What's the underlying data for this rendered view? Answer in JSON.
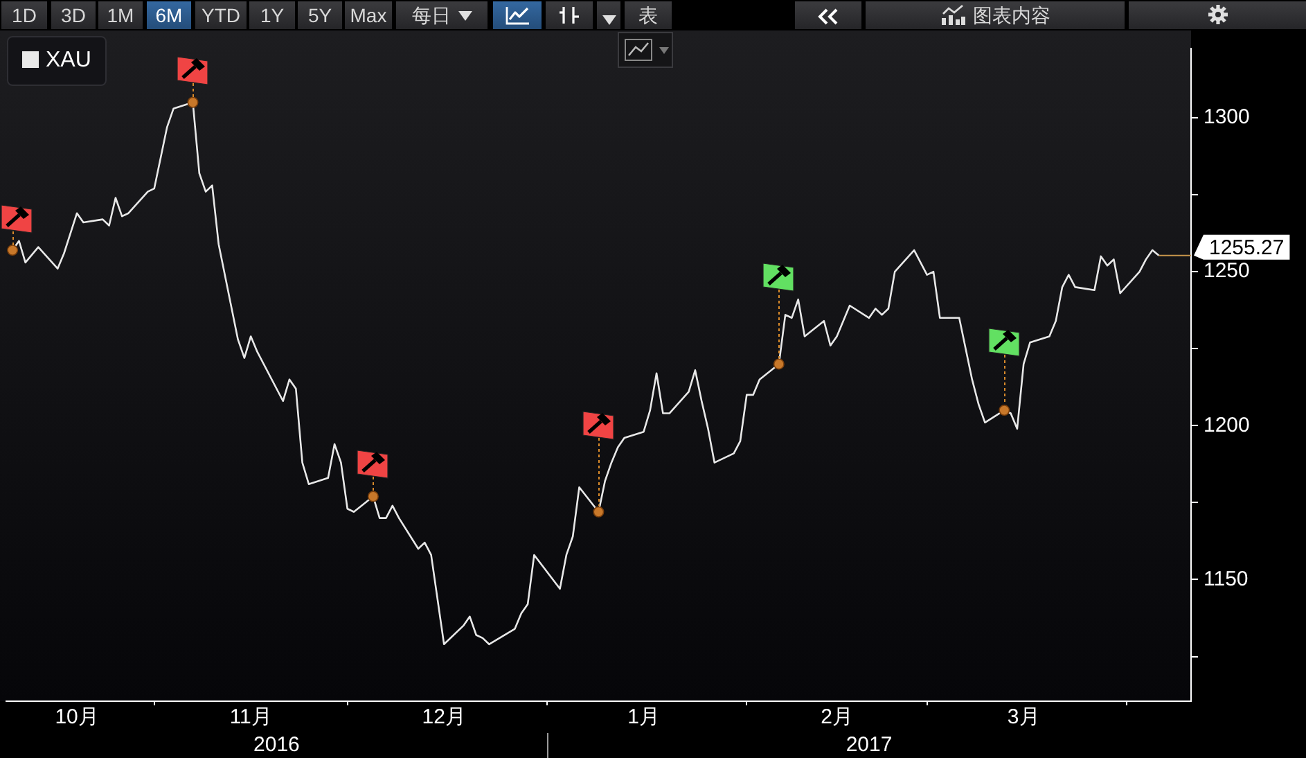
{
  "chart_data": {
    "type": "line",
    "series": [
      {
        "name": "XAU",
        "color": "#e8e8e8",
        "x": [
          "2016-10-10",
          "2016-10-11",
          "2016-10-12",
          "2016-10-14",
          "2016-10-17",
          "2016-10-18",
          "2016-10-20",
          "2016-10-21",
          "2016-10-24",
          "2016-10-25",
          "2016-10-26",
          "2016-10-27",
          "2016-10-28",
          "2016-10-31",
          "2016-11-01",
          "2016-11-02",
          "2016-11-03",
          "2016-11-04",
          "2016-11-07",
          "2016-11-08",
          "2016-11-09",
          "2016-11-10",
          "2016-11-11",
          "2016-11-14",
          "2016-11-15",
          "2016-11-16",
          "2016-11-17",
          "2016-11-21",
          "2016-11-22",
          "2016-11-23",
          "2016-11-24",
          "2016-11-25",
          "2016-11-28",
          "2016-11-29",
          "2016-11-30",
          "2016-12-01",
          "2016-12-02",
          "2016-12-05",
          "2016-12-06",
          "2016-12-07",
          "2016-12-08",
          "2016-12-09",
          "2016-12-12",
          "2016-12-13",
          "2016-12-14",
          "2016-12-16",
          "2016-12-19",
          "2016-12-20",
          "2016-12-21",
          "2016-12-22",
          "2016-12-23",
          "2016-12-27",
          "2016-12-28",
          "2016-12-29",
          "2016-12-30",
          "2017-01-03",
          "2017-01-04",
          "2017-01-05",
          "2017-01-06",
          "2017-01-09",
          "2017-01-10",
          "2017-01-11",
          "2017-01-12",
          "2017-01-13",
          "2017-01-16",
          "2017-01-17",
          "2017-01-18",
          "2017-01-19",
          "2017-01-20",
          "2017-01-23",
          "2017-01-24",
          "2017-01-25",
          "2017-01-26",
          "2017-01-27",
          "2017-01-30",
          "2017-01-31",
          "2017-02-01",
          "2017-02-02",
          "2017-02-03",
          "2017-02-06",
          "2017-02-07",
          "2017-02-08",
          "2017-02-09",
          "2017-02-10",
          "2017-02-13",
          "2017-02-14",
          "2017-02-15",
          "2017-02-16",
          "2017-02-17",
          "2017-02-20",
          "2017-02-21",
          "2017-02-22",
          "2017-02-23",
          "2017-02-24",
          "2017-02-27",
          "2017-02-28",
          "2017-03-01",
          "2017-03-02",
          "2017-03-03",
          "2017-03-06",
          "2017-03-07",
          "2017-03-08",
          "2017-03-09",
          "2017-03-10",
          "2017-03-13",
          "2017-03-14",
          "2017-03-15",
          "2017-03-16",
          "2017-03-17",
          "2017-03-20",
          "2017-03-21",
          "2017-03-22",
          "2017-03-23",
          "2017-03-24",
          "2017-03-27",
          "2017-03-28",
          "2017-03-29",
          "2017-03-30",
          "2017-03-31",
          "2017-04-03",
          "2017-04-04",
          "2017-04-05",
          "2017-04-06"
        ],
        "values": [
          1257,
          1260,
          1253,
          1258,
          1251,
          1256,
          1269,
          1266,
          1267,
          1265,
          1274,
          1268,
          1269,
          1276,
          1277,
          1287,
          1297,
          1303,
          1305,
          1282,
          1276,
          1278,
          1259,
          1228,
          1222,
          1229,
          1224,
          1208,
          1215,
          1212,
          1188,
          1181,
          1183,
          1194,
          1188,
          1173,
          1172,
          1177,
          1170,
          1170,
          1174,
          1170,
          1160,
          1162,
          1158,
          1129,
          1135,
          1138,
          1132,
          1131,
          1129,
          1134,
          1139,
          1142,
          1158,
          1147,
          1158,
          1164,
          1180,
          1172,
          1182,
          1188,
          1193,
          1196,
          1198,
          1205,
          1217,
          1204,
          1204,
          1211,
          1218,
          1208,
          1199,
          1188,
          1191,
          1195,
          1210,
          1210,
          1215,
          1220,
          1236,
          1235,
          1241,
          1229,
          1234,
          1226,
          1229,
          1234,
          1239,
          1235,
          1238,
          1236,
          1238,
          1250,
          1257,
          1253,
          1249,
          1250,
          1235,
          1235,
          1225,
          1215,
          1207,
          1201,
          1205,
          1204,
          1199,
          1220,
          1227,
          1229,
          1234,
          1245,
          1249,
          1245,
          1244,
          1255,
          1252,
          1254,
          1243,
          1250,
          1254,
          1257,
          1255.27
        ]
      },
      {
        "type": "scatter",
        "color": "#c8782a",
        "marker": "circle",
        "x": [
          "2016-10-10",
          "2016-11-07",
          "2016-12-05",
          "2017-01-09",
          "2017-02-06",
          "2017-03-13"
        ],
        "values": [
          1257,
          1305,
          1177,
          1172,
          1220,
          1205
        ]
      }
    ],
    "xlim": [
      "2016-10-09",
      "2017-04-11"
    ],
    "xticks": [
      {
        "value": "2016-10-20",
        "label": "10月"
      },
      {
        "value": "2016-11-01",
        "label": null
      },
      {
        "value": "2016-11-16",
        "label": "11月"
      },
      {
        "value": "2016-12-01",
        "label": null
      },
      {
        "value": "2016-12-16",
        "label": "12月"
      },
      {
        "value": "2017-01-01",
        "label": null
      },
      {
        "value": "2017-01-16",
        "label": "1月"
      },
      {
        "value": "2017-02-01",
        "label": null
      },
      {
        "value": "2017-02-15",
        "label": "2月"
      },
      {
        "value": "2017-03-01",
        "label": null
      },
      {
        "value": "2017-03-16",
        "label": "3月"
      },
      {
        "value": "2017-04-01",
        "label": null
      }
    ],
    "x2lim": [
      "2016-10-09",
      "2017-04-11"
    ],
    "x2ticks": [
      {
        "value": "2016-11-20",
        "label": "2016"
      },
      {
        "value": "2017-01-01",
        "label": null
      },
      {
        "value": "2017-02-20",
        "label": "2017"
      }
    ],
    "ylim": [
      1110.5,
      1322.5
    ],
    "yticks": [
      {
        "value": 1125,
        "label": null
      },
      1150,
      {
        "value": 1175,
        "label": null
      },
      1200,
      {
        "value": 1225,
        "label": null
      },
      1250,
      {
        "value": 1275,
        "label": null
      },
      1300
    ],
    "grid": false,
    "legend": "top left",
    "marker": "none",
    "annotations": [
      "1D",
      "3D",
      "1M",
      "6M",
      "YTD",
      "1Y",
      "5Y",
      "Max",
      "每日",
      "表",
      "图表内容",
      {
        "text": "1255.27",
        "x": "2017-04-06",
        "y": 1255.27
      }
    ]
  }
}
